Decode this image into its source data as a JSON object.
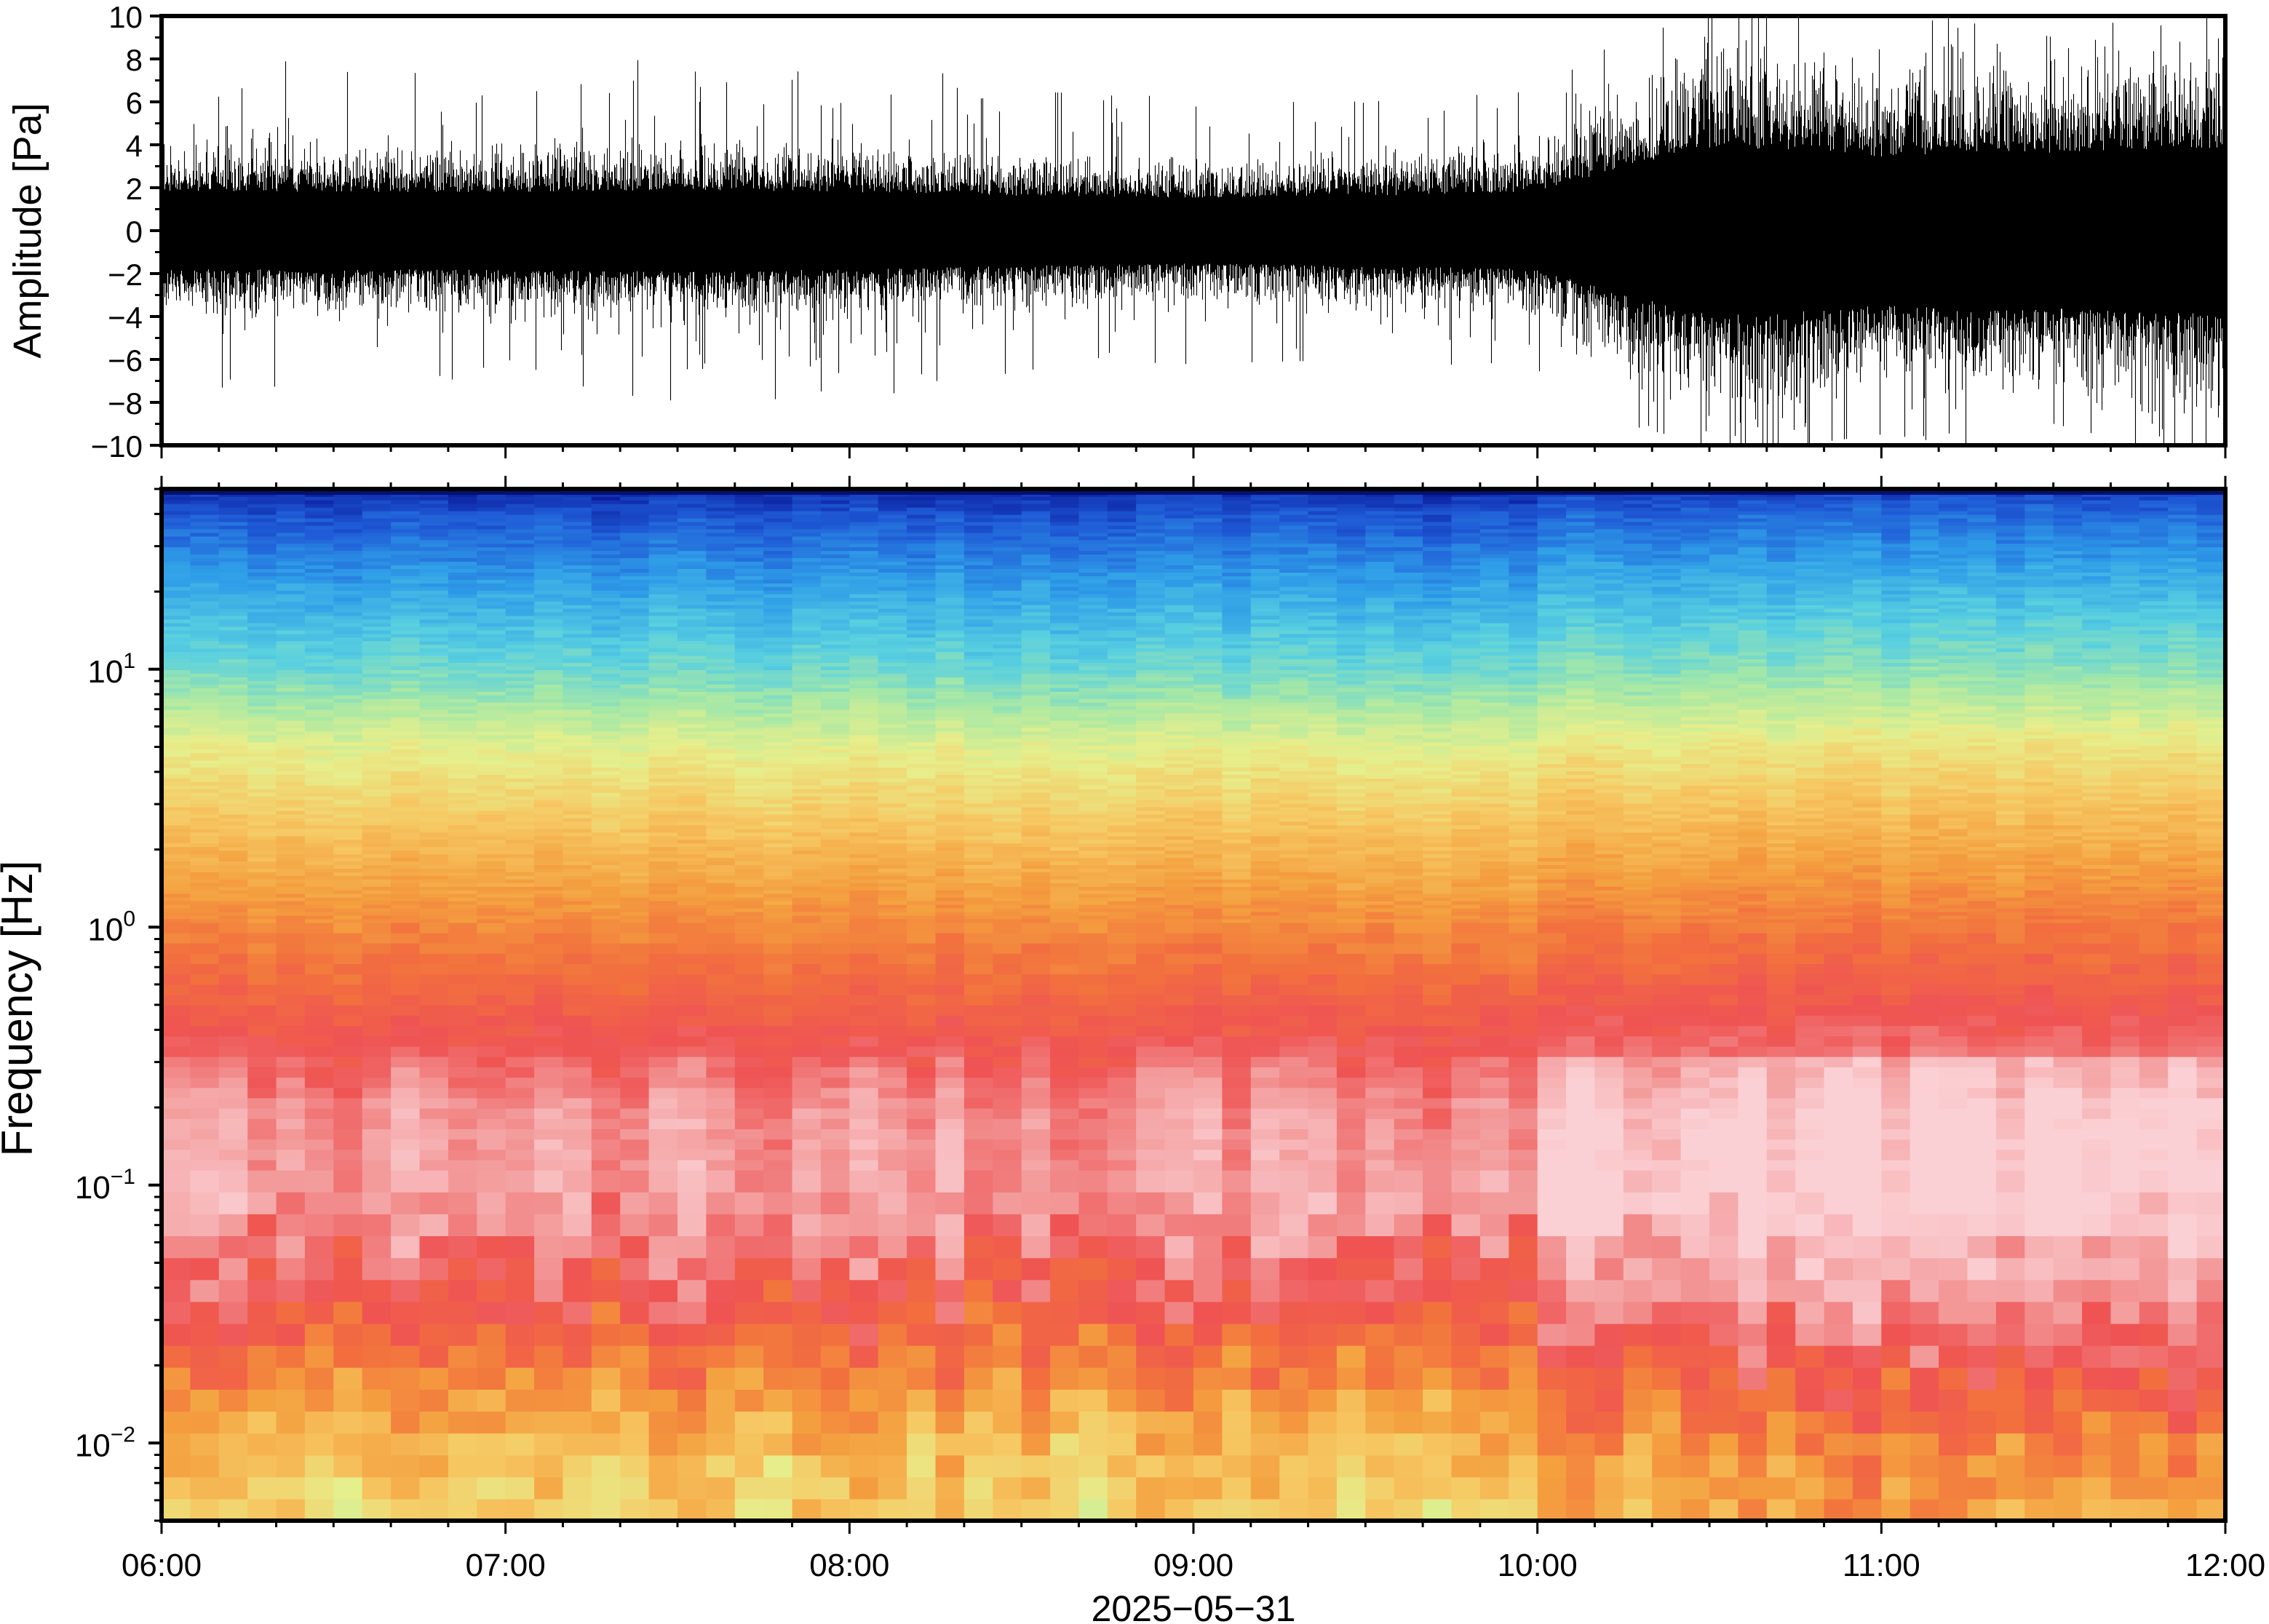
{
  "chart_data": [
    {
      "type": "line",
      "ylabel": "Amplitude [Pa]",
      "ylim": [
        -10,
        10
      ],
      "yticks": [
        10,
        8,
        6,
        4,
        2,
        0,
        -2,
        -4,
        -6,
        -8,
        -10
      ],
      "ytick_labels": [
        "10",
        "8",
        "6",
        "4",
        "2",
        "0",
        "−2",
        "−4",
        "−6",
        "−8",
        "−10"
      ],
      "x_range": [
        "06:00",
        "12:00"
      ],
      "grid": false,
      "envelope": {
        "x_hours": [
          6.0,
          6.5,
          7.0,
          7.5,
          8.0,
          8.5,
          9.0,
          9.5,
          10.0,
          10.25,
          10.5,
          10.75,
          11.0,
          11.25,
          11.5,
          11.75,
          12.0
        ],
        "typical_amplitude": [
          2.0,
          2.0,
          2.0,
          2.1,
          2.0,
          1.8,
          1.7,
          1.8,
          2.0,
          3.3,
          4.3,
          4.2,
          3.8,
          4.1,
          4.0,
          4.2,
          4.3
        ],
        "peak_amplitude": [
          6.4,
          9.0,
          6.0,
          8.8,
          8.3,
          6.5,
          6.2,
          6.0,
          6.5,
          9.0,
          10.0,
          10.0,
          9.5,
          10.0,
          9.0,
          10.0,
          10.0
        ]
      }
    },
    {
      "type": "heatmap",
      "ylabel": "Frequency [Hz]",
      "xlabel": "2025−05−31",
      "yscale": "log",
      "ylim": [
        0.005,
        50
      ],
      "yticks": [
        0.01,
        0.1,
        1,
        10
      ],
      "ytick_labels": [
        {
          "base": "10",
          "exp": "−2"
        },
        {
          "base": "10",
          "exp": "−1"
        },
        {
          "base": "10",
          "exp": "0"
        },
        {
          "base": "10",
          "exp": "1"
        }
      ],
      "xticks": [
        "06:00",
        "07:00",
        "08:00",
        "09:00",
        "10:00",
        "11:00",
        "12:00"
      ],
      "x_range_hours": [
        6,
        12
      ],
      "colormap": [
        "#0a1c9c",
        "#1f5ad6",
        "#2f9ee8",
        "#59d0e0",
        "#a6e8a6",
        "#e6ef8c",
        "#f6c863",
        "#f4a03f",
        "#f2703e",
        "#ef5353",
        "#f39a9a",
        "#fbd0d4"
      ],
      "log10_power_profile": {
        "log10_freq": [
          -2.3,
          -2.0,
          -1.7,
          -1.4,
          -1.0,
          -0.7,
          -0.4,
          0.0,
          0.4,
          0.7,
          1.0,
          1.3,
          1.6,
          1.7
        ],
        "level": [
          0.52,
          0.58,
          0.7,
          0.82,
          0.92,
          0.9,
          0.8,
          0.68,
          0.55,
          0.45,
          0.3,
          0.2,
          0.08,
          0.02
        ]
      }
    }
  ]
}
